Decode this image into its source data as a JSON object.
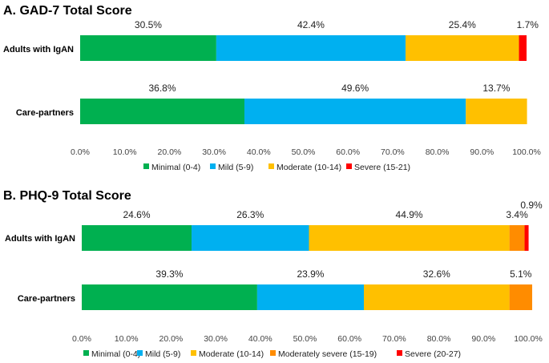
{
  "chart_data": [
    {
      "type": "bar",
      "orientation": "horizontal",
      "stacked": true,
      "title": "A. GAD-7 Total Score",
      "categories": [
        "Adults with IgAN",
        "Care-partners"
      ],
      "xlim": [
        0,
        100
      ],
      "ticks": [
        "0.0%",
        "10.0%",
        "20.0%",
        "30.0%",
        "40.0%",
        "50.0%",
        "60.0%",
        "70.0%",
        "80.0%",
        "90.0%",
        "100.0%"
      ],
      "legend_position": "bottom",
      "series": [
        {
          "name": "Minimal (0-4)",
          "color": "#00b050",
          "values": [
            30.5,
            36.8
          ],
          "labels": [
            "30.5%",
            "36.8%"
          ]
        },
        {
          "name": "Mild (5-9)",
          "color": "#00b0f0",
          "values": [
            42.4,
            49.6
          ],
          "labels": [
            "42.4%",
            "49.6%"
          ]
        },
        {
          "name": "Moderate (10-14)",
          "color": "#ffc000",
          "values": [
            25.4,
            13.7
          ],
          "labels": [
            "25.4%",
            "13.7%"
          ]
        },
        {
          "name": "Severe (15-21)",
          "color": "#ff0000",
          "values": [
            1.7,
            0
          ],
          "labels": [
            "1.7%",
            ""
          ]
        }
      ]
    },
    {
      "type": "bar",
      "orientation": "horizontal",
      "stacked": true,
      "title": "B. PHQ-9 Total Score",
      "categories": [
        "Adults with IgAN",
        "Care-partners"
      ],
      "xlim": [
        0,
        100
      ],
      "ticks": [
        "0.0%",
        "10.0%",
        "20.0%",
        "30.0%",
        "40.0%",
        "50.0%",
        "60.0%",
        "70.0%",
        "80.0%",
        "90.0%",
        "100.0%"
      ],
      "legend_position": "bottom",
      "series": [
        {
          "name": "Minimal (0-4)",
          "color": "#00b050",
          "values": [
            24.6,
            39.3
          ],
          "labels": [
            "24.6%",
            "39.3%"
          ]
        },
        {
          "name": "Mild (5-9)",
          "color": "#00b0f0",
          "values": [
            26.3,
            23.9
          ],
          "labels": [
            "26.3%",
            "23.9%"
          ]
        },
        {
          "name": "Moderate (10-14)",
          "color": "#ffc000",
          "values": [
            44.9,
            32.6
          ],
          "labels": [
            "44.9%",
            "32.6%"
          ]
        },
        {
          "name": "Moderately severe (15-19)",
          "color": "#ff8c00",
          "values": [
            3.4,
            5.1
          ],
          "labels": [
            "3.4%",
            "5.1%"
          ]
        },
        {
          "name": "Severe (20-27)",
          "color": "#ff0000",
          "values": [
            0.9,
            0
          ],
          "labels": [
            "0.9%",
            ""
          ]
        }
      ]
    }
  ]
}
